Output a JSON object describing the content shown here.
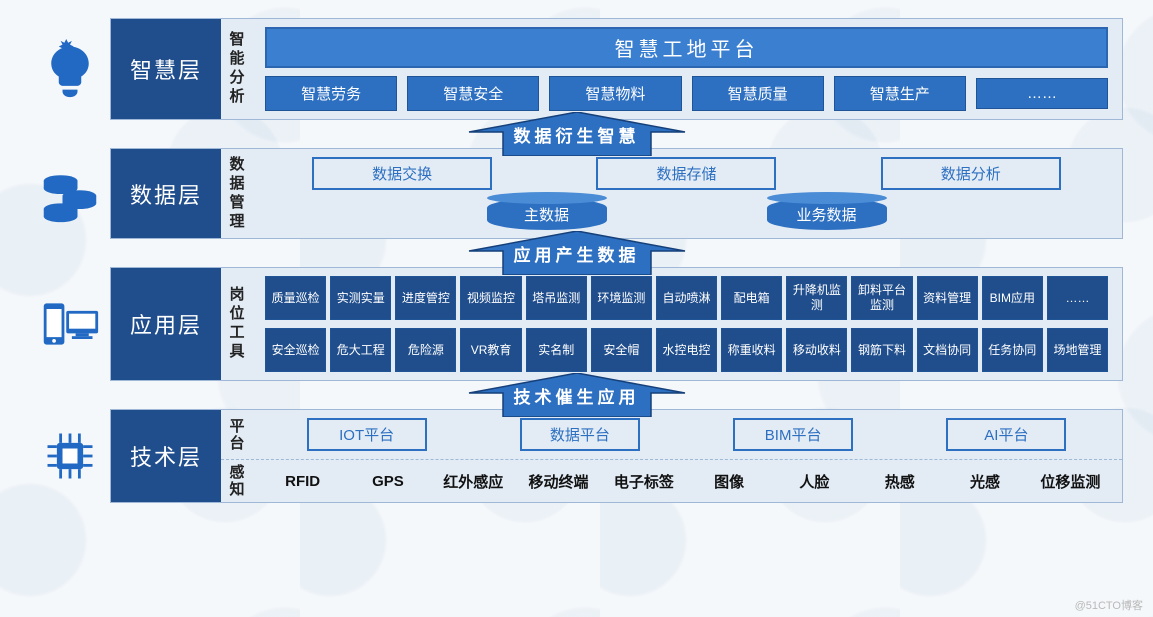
{
  "colors": {
    "darkBlue": "#204e8c",
    "midBlue": "#2d6fc1",
    "lightBlue": "#3b7fd1",
    "panelBg": "#e3ecf5",
    "border": "#9fb8d8",
    "iconBlue": "#2269c4"
  },
  "watermark": "@51CTO博客",
  "arrows": [
    {
      "label": "数据衍生智慧"
    },
    {
      "label": "应用产生数据"
    },
    {
      "label": "技术催生应用"
    }
  ],
  "layers": {
    "wisdom": {
      "title": "智慧层",
      "subLabel": "智能分析",
      "banner": "智慧工地平台",
      "modules": [
        "智慧劳务",
        "智慧安全",
        "智慧物料",
        "智慧质量",
        "智慧生产",
        "……"
      ]
    },
    "data": {
      "title": "数据层",
      "subLabel": "数据管理",
      "topModules": [
        "数据交换",
        "数据存储",
        "数据分析"
      ],
      "cylinders": [
        "主数据",
        "业务数据"
      ]
    },
    "app": {
      "title": "应用层",
      "subLabel": "岗位工具",
      "row1": [
        "质量巡检",
        "实测实量",
        "进度管控",
        "视频监控",
        "塔吊监测",
        "环境监测",
        "自动喷淋",
        "配电箱",
        "升降机监测",
        "卸料平台监测",
        "资料管理",
        "BIM应用",
        "……"
      ],
      "row2": [
        "安全巡检",
        "危大工程",
        "危险源",
        "VR教育",
        "实名制",
        "安全帽",
        "水控电控",
        "称重收料",
        "移动收料",
        "钢筋下料",
        "文档协同",
        "任务协同",
        "场地管理"
      ]
    },
    "tech": {
      "title": "技术层",
      "platformLabel": "平台",
      "platforms": [
        "IOT平台",
        "数据平台",
        "BIM平台",
        "AI平台"
      ],
      "senseLabel": "感知",
      "senses": [
        "RFID",
        "GPS",
        "红外感应",
        "移动终端",
        "电子标签",
        "图像",
        "人脸",
        "热感",
        "光感",
        "位移监测"
      ]
    }
  }
}
